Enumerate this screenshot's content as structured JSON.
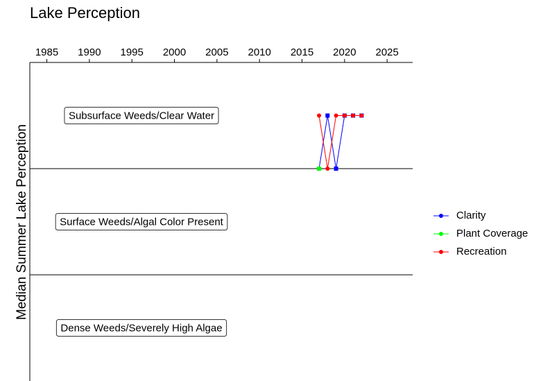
{
  "chart_data": {
    "type": "line",
    "title": "Lake Perception",
    "y_label": "Median Summer Lake Perception",
    "x": [
      2017,
      2018,
      2019,
      2020,
      2021,
      2022
    ],
    "series": [
      {
        "name": "Clarity",
        "color": "#0000ff",
        "marker": "square",
        "values": [
          2,
          2.5,
          2,
          2.5,
          2.5,
          2.5
        ]
      },
      {
        "name": "Plant Coverage",
        "color": "#00ff00",
        "marker": "square",
        "values": [
          2,
          null,
          null,
          null,
          null,
          null
        ]
      },
      {
        "name": "Recreation",
        "color": "#ff0000",
        "marker": "circle",
        "values": [
          2.5,
          2,
          2.5,
          2.5,
          2.5,
          2.5
        ]
      }
    ],
    "xlim": [
      1983,
      2028
    ],
    "xticks": [
      1985,
      1990,
      1995,
      2000,
      2005,
      2010,
      2015,
      2020,
      2025
    ],
    "x_axis_position": "top",
    "ylim": [
      0,
      3
    ],
    "thresholds": [
      1,
      2
    ],
    "bands": [
      {
        "label": "Subsurface Weeds/Clear Water",
        "value": 2.5
      },
      {
        "label": "Surface Weeds/Algal Color Present",
        "value": 1.5
      },
      {
        "label": "Dense Weeds/Severely High Algae",
        "value": 0.5
      }
    ],
    "legend": "right"
  }
}
